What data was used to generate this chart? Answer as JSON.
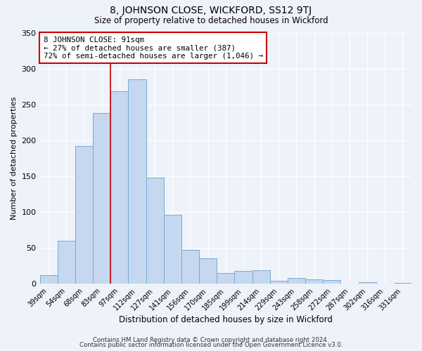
{
  "title": "8, JOHNSON CLOSE, WICKFORD, SS12 9TJ",
  "subtitle": "Size of property relative to detached houses in Wickford",
  "xlabel": "Distribution of detached houses by size in Wickford",
  "ylabel": "Number of detached properties",
  "bar_labels": [
    "39sqm",
    "54sqm",
    "68sqm",
    "83sqm",
    "97sqm",
    "112sqm",
    "127sqm",
    "141sqm",
    "156sqm",
    "170sqm",
    "185sqm",
    "199sqm",
    "214sqm",
    "229sqm",
    "243sqm",
    "258sqm",
    "272sqm",
    "287sqm",
    "302sqm",
    "316sqm",
    "331sqm"
  ],
  "bar_values": [
    12,
    60,
    192,
    238,
    268,
    285,
    148,
    96,
    47,
    35,
    15,
    18,
    19,
    4,
    8,
    6,
    5,
    0,
    2,
    0,
    1
  ],
  "bar_color": "#c5d8f0",
  "bar_edge_color": "#7aaad4",
  "vline_x_index": 3.5,
  "annotation_text_line1": "8 JOHNSON CLOSE: 91sqm",
  "annotation_text_line2": "← 27% of detached houses are smaller (387)",
  "annotation_text_line3": "72% of semi-detached houses are larger (1,046) →",
  "annotation_box_edge_color": "#cc0000",
  "vline_color": "#cc0000",
  "ylim": [
    0,
    350
  ],
  "footnote1": "Contains HM Land Registry data © Crown copyright and database right 2024.",
  "footnote2": "Contains public sector information licensed under the Open Government Licence v3.0.",
  "background_color": "#eef2f9"
}
